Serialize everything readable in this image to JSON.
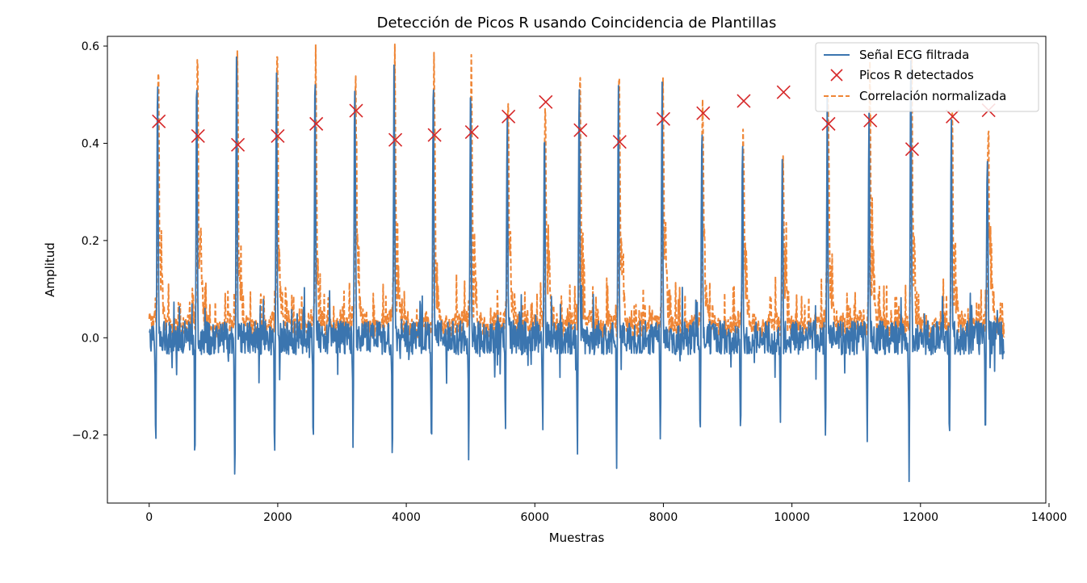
{
  "chart_data": {
    "type": "line",
    "title": "Detección de Picos R usando Coincidencia de Plantillas",
    "xlabel": "Muestras",
    "ylabel": "Amplitud",
    "xlim": [
      -650,
      13950
    ],
    "ylim": [
      -0.34,
      0.62
    ],
    "xticks": [
      0,
      2000,
      4000,
      6000,
      8000,
      10000,
      12000,
      14000
    ],
    "yticks": [
      -0.2,
      0.0,
      0.2,
      0.4,
      0.6
    ],
    "ytick_labels": [
      "−0.2",
      "0.0",
      "0.2",
      "0.4",
      "0.6"
    ],
    "grid": false,
    "legend_position": "top-right",
    "colors": {
      "ecg": "#3b75af",
      "peaks": "#d62728",
      "corr": "#ef8636"
    },
    "signal_length": 13300,
    "beats": [
      {
        "x": 130,
        "ecg_peak": 0.54,
        "corr_peak": 0.54,
        "min": -0.24
      },
      {
        "x": 740,
        "ecg_peak": 0.55,
        "corr_peak": 0.55,
        "min": -0.26
      },
      {
        "x": 1360,
        "ecg_peak": 0.58,
        "corr_peak": 0.57,
        "min": -0.29
      },
      {
        "x": 1980,
        "ecg_peak": 0.565,
        "corr_peak": 0.565,
        "min": -0.275
      },
      {
        "x": 2580,
        "ecg_peak": 0.53,
        "corr_peak": 0.525,
        "min": -0.225
      },
      {
        "x": 3200,
        "ecg_peak": 0.54,
        "corr_peak": 0.53,
        "min": -0.22
      },
      {
        "x": 3810,
        "ecg_peak": 0.54,
        "corr_peak": 0.55,
        "min": -0.25
      },
      {
        "x": 4420,
        "ecg_peak": 0.555,
        "corr_peak": 0.555,
        "min": -0.25
      },
      {
        "x": 5000,
        "ecg_peak": 0.54,
        "corr_peak": 0.54,
        "min": -0.25
      },
      {
        "x": 5570,
        "ecg_peak": 0.45,
        "corr_peak": 0.455,
        "min": -0.205
      },
      {
        "x": 6150,
        "ecg_peak": 0.455,
        "corr_peak": 0.45,
        "min": -0.195
      },
      {
        "x": 6690,
        "ecg_peak": 0.505,
        "corr_peak": 0.515,
        "min": -0.25
      },
      {
        "x": 7300,
        "ecg_peak": 0.535,
        "corr_peak": 0.54,
        "min": -0.255
      },
      {
        "x": 7980,
        "ecg_peak": 0.515,
        "corr_peak": 0.5,
        "min": -0.245
      },
      {
        "x": 8600,
        "ecg_peak": 0.45,
        "corr_peak": 0.455,
        "min": -0.2
      },
      {
        "x": 9230,
        "ecg_peak": 0.405,
        "corr_peak": 0.395,
        "min": -0.175
      },
      {
        "x": 9850,
        "ecg_peak": 0.375,
        "corr_peak": 0.37,
        "min": -0.16
      },
      {
        "x": 10550,
        "ecg_peak": 0.475,
        "corr_peak": 0.48,
        "min": -0.22
      },
      {
        "x": 11200,
        "ecg_peak": 0.48,
        "corr_peak": 0.48,
        "min": -0.22
      },
      {
        "x": 11850,
        "ecg_peak": 0.58,
        "corr_peak": 0.575,
        "min": -0.28
      },
      {
        "x": 12480,
        "ecg_peak": 0.44,
        "corr_peak": 0.445,
        "min": -0.225
      },
      {
        "x": 13040,
        "ecg_peak": 0.395,
        "corr_peak": 0.4,
        "min": -0.215
      }
    ],
    "series": [
      {
        "name": "Señal ECG filtrada",
        "style": "solid"
      },
      {
        "name": "Picos R detectados",
        "style": "marker-x",
        "points": [
          [
            150,
            0.445
          ],
          [
            760,
            0.415
          ],
          [
            1380,
            0.397
          ],
          [
            2000,
            0.415
          ],
          [
            2600,
            0.44
          ],
          [
            3220,
            0.467
          ],
          [
            3830,
            0.407
          ],
          [
            4440,
            0.417
          ],
          [
            5020,
            0.423
          ],
          [
            5590,
            0.455
          ],
          [
            6170,
            0.485
          ],
          [
            6710,
            0.427
          ],
          [
            7320,
            0.403
          ],
          [
            8000,
            0.45
          ],
          [
            8620,
            0.462
          ],
          [
            9250,
            0.487
          ],
          [
            9870,
            0.505
          ],
          [
            10570,
            0.44
          ],
          [
            11220,
            0.447
          ],
          [
            11870,
            0.388
          ],
          [
            12500,
            0.455
          ],
          [
            13060,
            0.468
          ]
        ]
      },
      {
        "name": "Correlación normalizada",
        "style": "dashed"
      }
    ]
  }
}
